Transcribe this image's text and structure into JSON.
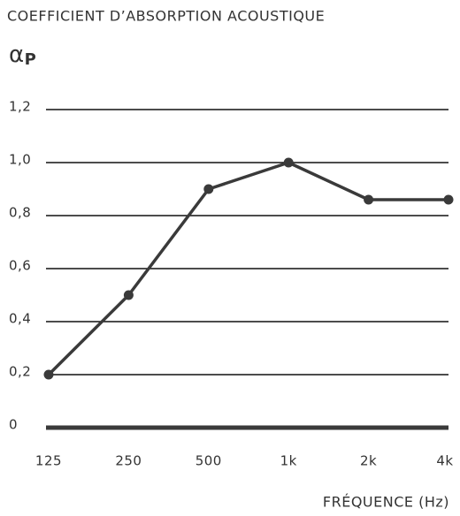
{
  "chart_data": {
    "type": "line",
    "title": "COEFFICIENT D’ABSORPTION ACOUSTIQUE",
    "y_label": {
      "symbol": "α",
      "subscript": "P"
    },
    "x_label": "FRÉQUENCE (Hz)",
    "categories": [
      "125",
      "250",
      "500",
      "1k",
      "2k",
      "4k"
    ],
    "values": [
      0.2,
      0.5,
      0.9,
      1.0,
      0.86,
      0.86
    ],
    "color": "#3a3a3a",
    "ylim": [
      0,
      1.2
    ],
    "yticks": [
      0,
      {
        "value": 0.2,
        "label": "0,2"
      },
      {
        "value": 0.4,
        "label": "0,4"
      },
      {
        "value": 0.6,
        "label": "0,6"
      },
      {
        "value": 0.8,
        "label": "0,8"
      },
      {
        "value": 1.0,
        "label": "1,0"
      },
      {
        "value": 1.2,
        "label": "1,2"
      }
    ],
    "grid": true
  }
}
